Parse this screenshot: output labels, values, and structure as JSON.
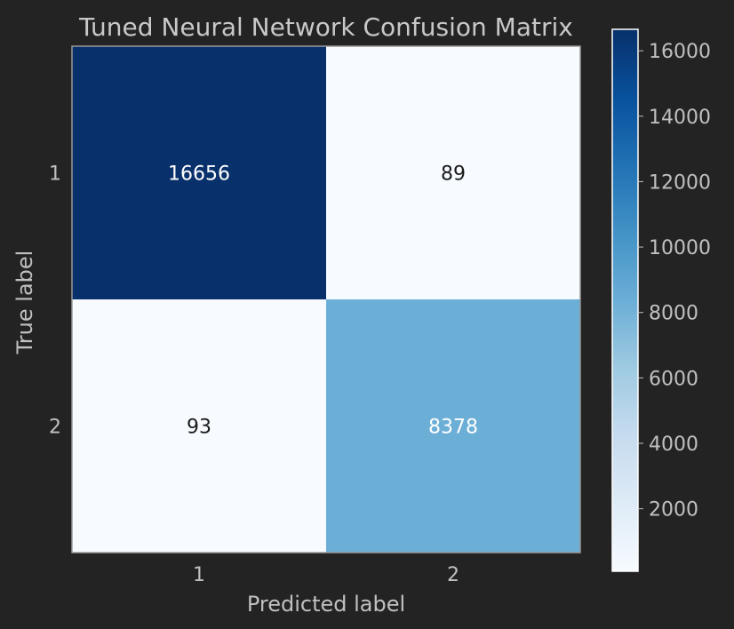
{
  "chart_data": {
    "type": "heatmap",
    "title": "Tuned Neural Network Confusion Matrix",
    "xlabel": "Predicted label",
    "ylabel": "True label",
    "x_categories": [
      "1",
      "2"
    ],
    "y_categories": [
      "1",
      "2"
    ],
    "matrix": [
      [
        16656,
        89
      ],
      [
        93,
        8378
      ]
    ],
    "colormap": "Blues",
    "color_range": [
      89,
      16656
    ],
    "colorbar_ticks": [
      2000,
      4000,
      6000,
      8000,
      10000,
      12000,
      14000,
      16000
    ],
    "colorbar_tick_labels": [
      "2000",
      "4000",
      "6000",
      "8000",
      "10000",
      "12000",
      "14000",
      "16000"
    ],
    "grid": false
  }
}
